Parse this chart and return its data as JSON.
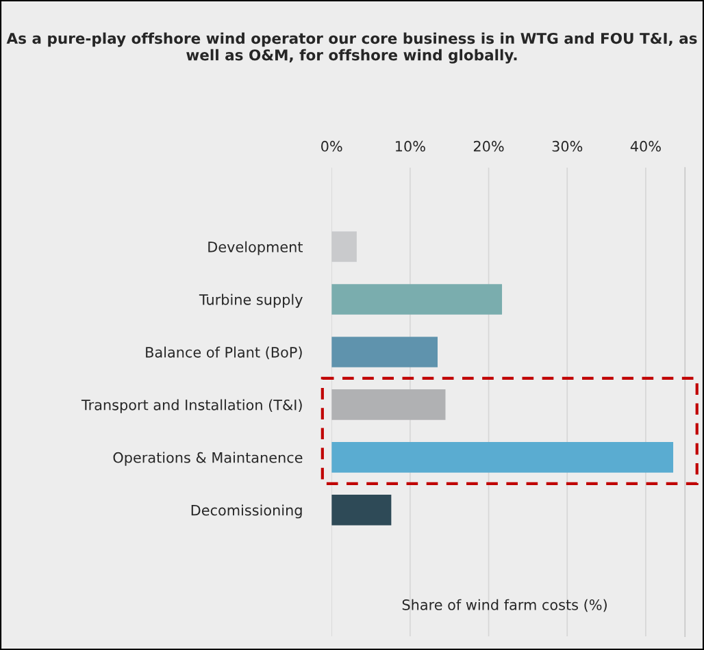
{
  "chart_data": {
    "type": "bar",
    "orientation": "horizontal",
    "title": "As a pure-play offshore wind operator our core business is in WTG and FOU T&I, as well as O&M, for offshore wind globally.",
    "annotations": [
      "Share of wind farm costs (%)"
    ],
    "categories": [
      "Development",
      "Turbine supply",
      "Balance of Plant (BoP)",
      "Transport and Installation (T&I)",
      "Operations & Maintanence",
      "Decomissioning"
    ],
    "values": [
      3.2,
      21.7,
      13.5,
      14.5,
      43.5,
      7.6
    ],
    "colors": [
      "#c9cacc",
      "#7aadae",
      "#5f93ad",
      "#b0b1b3",
      "#5aacd1",
      "#2e4a57"
    ],
    "xlim": [
      0,
      45
    ],
    "xticks": [
      {
        "value": 0,
        "label": "0%"
      },
      {
        "value": 10,
        "label": "10%"
      },
      {
        "value": 20,
        "label": "20%"
      },
      {
        "value": 30,
        "label": "30%"
      },
      {
        "value": 40,
        "label": "40%"
      }
    ],
    "grid": "x"
  }
}
